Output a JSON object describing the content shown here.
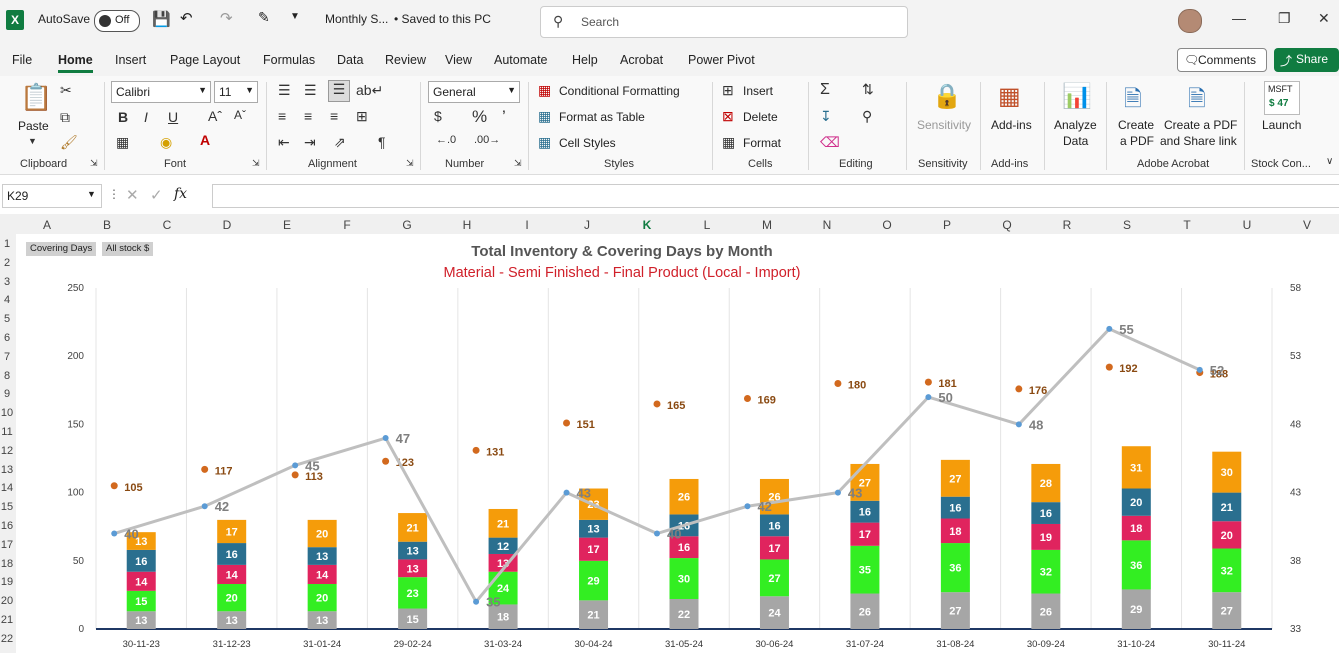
{
  "titlebar": {
    "autosave_label": "AutoSave",
    "autosave_state": "Off",
    "file_name": "Monthly S...",
    "save_status": "• Saved to this PC",
    "search_placeholder": "Search"
  },
  "menu": {
    "items": [
      "File",
      "Home",
      "Insert",
      "Page Layout",
      "Formulas",
      "Data",
      "Review",
      "View",
      "Automate",
      "Help",
      "Acrobat",
      "Power Pivot"
    ],
    "active": "Home",
    "comments_label": "Comments",
    "share_label": "Share"
  },
  "ribbon": {
    "clipboard": {
      "paste": "Paste",
      "label": "Clipboard"
    },
    "font": {
      "name": "Calibri",
      "size": "11",
      "label": "Font"
    },
    "alignment": {
      "label": "Alignment"
    },
    "number": {
      "format": "General",
      "label": "Number"
    },
    "styles": {
      "conditional": "Conditional Formatting",
      "format_table": "Format as Table",
      "cell_styles": "Cell Styles",
      "label": "Styles"
    },
    "cells": {
      "insert": "Insert",
      "delete": "Delete",
      "format": "Format",
      "label": "Cells"
    },
    "editing": {
      "label": "Editing"
    },
    "sensitivity": {
      "button": "Sensitivity",
      "label": "Sensitivity"
    },
    "addins": {
      "button": "Add-ins",
      "label": "Add-ins"
    },
    "analyze": {
      "line1": "Analyze",
      "line2": "Data"
    },
    "acrobat": {
      "create_pdf_1": "Create",
      "create_pdf_2": "a PDF",
      "share_1": "Create a PDF",
      "share_2": "and Share link",
      "label": "Adobe Acrobat"
    },
    "stock": {
      "ticker": "MSFT",
      "price": "$ 47",
      "button": "Launch",
      "label": "Stock Con..."
    }
  },
  "formula_bar": {
    "cell_ref": "K29",
    "formula": ""
  },
  "columns": [
    "A",
    "B",
    "C",
    "D",
    "E",
    "F",
    "G",
    "H",
    "I",
    "J",
    "K",
    "L",
    "M",
    "N",
    "O",
    "P",
    "Q",
    "R",
    "S",
    "T",
    "U",
    "V"
  ],
  "rows": [
    "1",
    "2",
    "3",
    "4",
    "5",
    "6",
    "7",
    "8",
    "9",
    "10",
    "11",
    "12",
    "13",
    "14",
    "15",
    "16",
    "17",
    "18",
    "19",
    "20",
    "21",
    "22"
  ],
  "slicers": [
    "Covering Days",
    "All stock $"
  ],
  "chart_data": {
    "type": "bar",
    "stacked": true,
    "title": "Total Inventory & Covering Days by Month",
    "subtitle": "Material - Semi Finished - Final Product (Local - Import)",
    "categories": [
      "30-11-23",
      "31-12-23",
      "31-01-24",
      "29-02-24",
      "31-03-24",
      "30-04-24",
      "31-05-24",
      "30-06-24",
      "31-07-24",
      "31-08-24",
      "30-09-24",
      "31-10-24",
      "30-11-24"
    ],
    "ylim": [
      0,
      250
    ],
    "yticks": [
      0,
      50,
      100,
      150,
      200,
      250
    ],
    "y2lim": [
      33,
      58
    ],
    "y2ticks": [
      33,
      38,
      43,
      48,
      53,
      58
    ],
    "series": [
      {
        "color": "#a6a6a6",
        "values": [
          13,
          13,
          13,
          15,
          18,
          21,
          22,
          24,
          26,
          27,
          26,
          29,
          27
        ]
      },
      {
        "color": "#33ee22",
        "values": [
          15,
          20,
          20,
          23,
          24,
          29,
          30,
          27,
          35,
          36,
          32,
          36,
          32
        ]
      },
      {
        "color": "#e0245e",
        "values": [
          14,
          14,
          14,
          13,
          13,
          17,
          16,
          17,
          17,
          18,
          19,
          18,
          20
        ]
      },
      {
        "color": "#2a6f8f",
        "values": [
          16,
          16,
          13,
          13,
          12,
          13,
          16,
          16,
          16,
          16,
          16,
          20,
          21
        ]
      },
      {
        "color": "#f59c0a",
        "values": [
          13,
          17,
          20,
          21,
          21,
          23,
          26,
          26,
          27,
          27,
          28,
          31,
          30
        ]
      }
    ],
    "totals": {
      "color": "#d2691e",
      "values": [
        105,
        117,
        113,
        123,
        131,
        151,
        165,
        169,
        180,
        181,
        176,
        192,
        188
      ]
    },
    "covering_days": {
      "color": "#bfbfbf",
      "values": [
        40,
        42,
        45,
        47,
        35,
        43,
        40,
        42,
        43,
        50,
        48,
        55,
        52
      ]
    }
  }
}
